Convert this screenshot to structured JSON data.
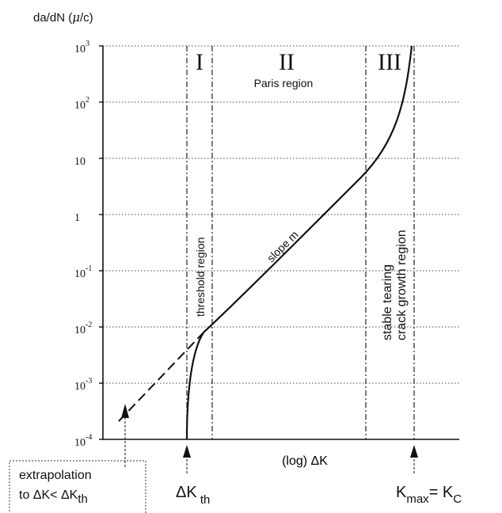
{
  "chart_data": {
    "type": "line",
    "ylabel": "da/dN (",
    "ylabel_mu": "μ",
    "ylabel_tail": "/c)",
    "xlabel": "(log) ΔK",
    "y_scale": "log",
    "ylim": [
      0.0001,
      1000
    ],
    "y_ticks": [
      {
        "base": "10",
        "exp": "3"
      },
      {
        "base": "10",
        "exp": "2"
      },
      {
        "base": "10",
        "exp": ""
      },
      {
        "base": "1",
        "exp": ""
      },
      {
        "base": "10",
        "exp": "-1"
      },
      {
        "base": "10",
        "exp": "-2"
      },
      {
        "base": "10",
        "exp": "-3"
      },
      {
        "base": "10",
        "exp": "-4"
      }
    ],
    "grid": true,
    "regions": [
      {
        "numeral": "I",
        "label": "threshold region"
      },
      {
        "numeral": "II",
        "label": "Paris region",
        "slope_label": "slope m"
      },
      {
        "numeral": "III",
        "label_line1": "stable tearing",
        "label_line2": "crack growth region"
      }
    ],
    "annotations": {
      "extrapolation_line1": "extrapolation",
      "extrapolation_line2": "to ΔK< ΔK",
      "extrapolation_sub": "th",
      "dk_th_main": "ΔK",
      "dk_th_sub": " th",
      "kmax_main": "K",
      "kmax_sub": "max",
      "kmax_tail": "= K",
      "kmax_tail_sub": "C"
    },
    "series": [
      {
        "style": "solid",
        "y_start": 0.0001,
        "y_end": 1000
      },
      {
        "style": "dashed",
        "y_start": 0.0003,
        "y_end": 0.01
      }
    ]
  }
}
